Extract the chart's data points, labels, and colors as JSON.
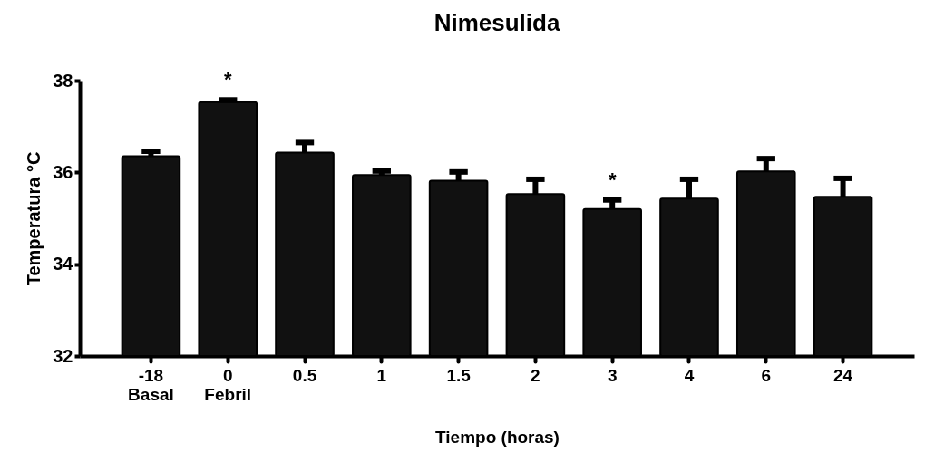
{
  "chart_data": {
    "type": "bar",
    "title": "Nimesulida",
    "xlabel": "Tiempo (horas)",
    "ylabel": "Temperatura °C",
    "categories": [
      "-18\nBasal",
      "0\nFebril",
      "0.5",
      "1",
      "1.5",
      "2",
      "3",
      "4",
      "6",
      "24"
    ],
    "values": [
      36.35,
      37.53,
      36.43,
      35.94,
      35.82,
      35.53,
      35.2,
      35.43,
      36.02,
      35.47
    ],
    "errors": [
      [
        36.35,
        36.46
      ],
      [
        37.53,
        37.58
      ],
      [
        36.43,
        36.65
      ],
      [
        35.94,
        36.03
      ],
      [
        35.82,
        36.01
      ],
      [
        35.53,
        35.85
      ],
      [
        35.2,
        35.4
      ],
      [
        35.43,
        35.85
      ],
      [
        36.02,
        36.3
      ],
      [
        35.47,
        35.87
      ]
    ],
    "color": "#111111",
    "ylim": [
      32,
      38
    ],
    "yticks": [
      32,
      34,
      36,
      38
    ],
    "grid": false,
    "annotations": [
      {
        "text": "*",
        "x": "0\nFebril",
        "y": 37.58
      },
      {
        "text": "*",
        "x": "3",
        "y": 35.4
      }
    ]
  }
}
